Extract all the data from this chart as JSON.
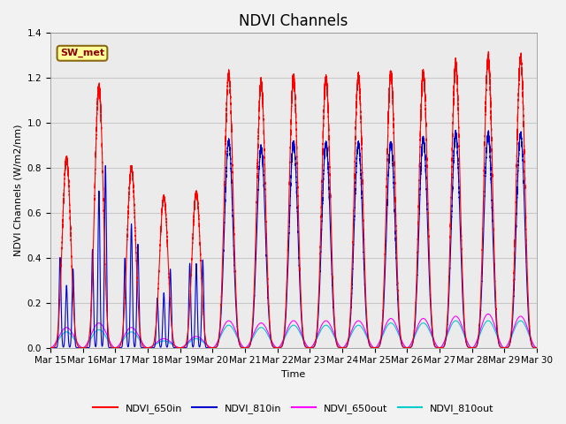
{
  "title": "NDVI Channels",
  "ylabel": "NDVI Channels (W/m2/nm)",
  "xlabel": "Time",
  "ylim": [
    0,
    1.4
  ],
  "yticks": [
    0.0,
    0.2,
    0.4,
    0.6,
    0.8,
    1.0,
    1.2,
    1.4
  ],
  "annotation_text": "SW_met",
  "annotation_bbox": {
    "boxstyle": "round,pad=0.3",
    "facecolor": "#FFFF99",
    "edgecolor": "#8B6914"
  },
  "legend_entries": [
    {
      "label": "NDVI_650in",
      "color": "#FF0000",
      "lw": 0.8
    },
    {
      "label": "NDVI_810in",
      "color": "#0000CC",
      "lw": 0.8
    },
    {
      "label": "NDVI_650out",
      "color": "#FF00FF",
      "lw": 0.8
    },
    {
      "label": "NDVI_810out",
      "color": "#00CCCC",
      "lw": 0.8
    }
  ],
  "grid_color": "#C8C8C8",
  "axes_bg_color": "#EBEBEB",
  "fig_bg_color": "#F2F2F2",
  "xtick_labels": [
    "Mar 15",
    "Mar 16",
    "Mar 17",
    "Mar 18",
    "Mar 19",
    "Mar 20",
    "Mar 21",
    "Mar 22",
    "Mar 23",
    "Mar 24",
    "Mar 25",
    "Mar 26",
    "Mar 27",
    "Mar 28",
    "Mar 29",
    "Mar 30"
  ],
  "peak_650in": [
    0.84,
    1.16,
    0.8,
    0.67,
    0.69,
    1.22,
    1.18,
    1.2,
    1.2,
    1.21,
    1.22,
    1.22,
    1.26,
    1.29,
    1.29
  ],
  "peak_810in": [
    0.49,
    0.87,
    0.62,
    0.43,
    0.42,
    0.92,
    0.89,
    0.91,
    0.91,
    0.91,
    0.91,
    0.93,
    0.95,
    0.95,
    0.95
  ],
  "peak_650out": [
    0.09,
    0.11,
    0.09,
    0.04,
    0.05,
    0.12,
    0.11,
    0.12,
    0.12,
    0.12,
    0.13,
    0.13,
    0.14,
    0.15,
    0.14
  ],
  "peak_810out": [
    0.07,
    0.08,
    0.07,
    0.03,
    0.04,
    0.1,
    0.09,
    0.1,
    0.1,
    0.1,
    0.11,
    0.11,
    0.12,
    0.12,
    0.12
  ],
  "title_fontsize": 12,
  "label_fontsize": 8,
  "tick_fontsize": 7.5
}
